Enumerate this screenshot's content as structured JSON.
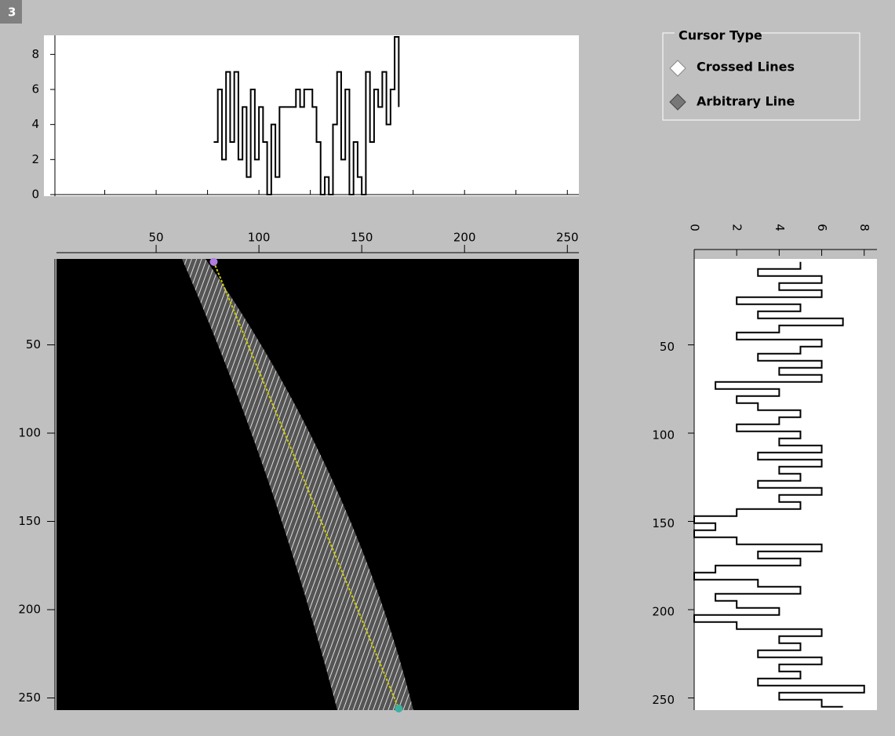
{
  "window_label": "3",
  "cursor_type": {
    "title": "Cursor Type",
    "options": [
      "Crossed Lines",
      "Arbitrary Line"
    ],
    "selected": 1
  },
  "top_profile": {
    "type": "line",
    "x": [
      78,
      80,
      82,
      84,
      86,
      88,
      90,
      92,
      94,
      96,
      98,
      100,
      102,
      104,
      106,
      108,
      110,
      112,
      114,
      116,
      118,
      120,
      122,
      124,
      126,
      128,
      130,
      132,
      134,
      136,
      138,
      140,
      142,
      144,
      146,
      148,
      150,
      152,
      154,
      156,
      158,
      160,
      162,
      164,
      166,
      168
    ],
    "values": [
      3,
      6,
      2,
      7,
      3,
      7,
      2,
      5,
      1,
      6,
      2,
      5,
      3,
      0,
      4,
      1,
      5,
      5,
      5,
      5,
      6,
      5,
      6,
      6,
      5,
      3,
      0,
      1,
      0,
      4,
      7,
      2,
      6,
      0,
      3,
      1,
      0,
      7,
      3,
      6,
      5,
      7,
      4,
      6,
      9,
      5
    ],
    "xlim": [
      0,
      256
    ],
    "ylim": [
      0,
      9
    ],
    "yticks": [
      0,
      2,
      4,
      6,
      8
    ],
    "xticks": [
      25,
      50,
      75,
      100,
      125,
      150,
      175,
      200,
      225,
      250
    ]
  },
  "image": {
    "xlim": [
      0,
      256
    ],
    "ylim": [
      0,
      256
    ],
    "xticks": [
      50,
      100,
      150,
      200,
      250
    ],
    "yticks": [
      50,
      100,
      150,
      200,
      250
    ],
    "cursor_x": [
      78,
      168
    ],
    "cursor_y": [
      3,
      256
    ]
  },
  "right_profile": {
    "type": "line",
    "y": [
      3,
      7,
      11,
      15,
      19,
      23,
      27,
      31,
      35,
      39,
      43,
      47,
      51,
      55,
      59,
      63,
      67,
      71,
      75,
      79,
      83,
      87,
      91,
      95,
      99,
      103,
      107,
      111,
      115,
      119,
      123,
      127,
      131,
      135,
      139,
      143,
      147,
      151,
      155,
      159,
      163,
      167,
      171,
      175,
      179,
      183,
      187,
      191,
      195,
      199,
      203,
      207,
      211,
      215,
      219,
      223,
      227,
      231,
      235,
      239,
      243,
      247,
      251,
      255
    ],
    "values": [
      5,
      3,
      6,
      4,
      6,
      2,
      5,
      3,
      7,
      4,
      2,
      6,
      5,
      3,
      6,
      4,
      6,
      1,
      4,
      2,
      3,
      5,
      4,
      2,
      5,
      4,
      6,
      3,
      6,
      4,
      5,
      3,
      6,
      4,
      5,
      2,
      0,
      1,
      0,
      2,
      6,
      3,
      5,
      1,
      0,
      3,
      5,
      1,
      2,
      4,
      0,
      2,
      6,
      4,
      5,
      3,
      6,
      4,
      5,
      3,
      8,
      4,
      6,
      7
    ],
    "xlim": [
      0,
      8.6
    ],
    "xticks": [
      0,
      2,
      4,
      6,
      8
    ],
    "ylim": [
      0,
      256
    ],
    "yticks": [
      50,
      100,
      150,
      200,
      250
    ]
  }
}
